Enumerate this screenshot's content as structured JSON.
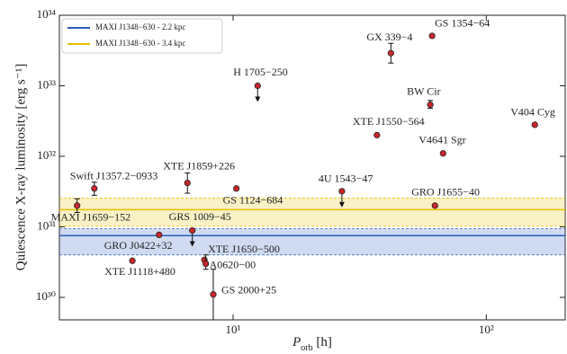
{
  "chart_data": {
    "type": "scatter",
    "xlabel": {
      "symbol": "P",
      "subscript": "orb",
      "unit": " [h]"
    },
    "ylabel": "Quiescence X-ray luminosity [erg s⁻¹]",
    "xscale": "log",
    "yscale": "log",
    "xlim": [
      2.06,
      205
    ],
    "ylim": [
      4.8e+29,
      1e+34
    ],
    "xticks": [
      {
        "value": 10,
        "label": "10¹"
      },
      {
        "value": 100,
        "label": "10²"
      }
    ],
    "yticks": [
      {
        "value": 1e+30,
        "label": "10³⁰"
      },
      {
        "value": 1e+31,
        "label": "10³¹"
      },
      {
        "value": 1e+32,
        "label": "10³²"
      },
      {
        "value": 1e+33,
        "label": "10³³"
      },
      {
        "value": 1e+34,
        "label": "10³⁴"
      }
    ],
    "legend": "upper left",
    "color": "#c8282b",
    "bands": [
      {
        "name": "MAXI J1348−630 - 2.2 kpc",
        "color": "#2a5cbf",
        "value": 7.5e+30,
        "lower": 4e+30,
        "upper": 9.4e+30
      },
      {
        "name": "MAXI J1348−630 - 3.4 kpc",
        "color": "#e8c000",
        "value": 1.75e+31,
        "lower": 1.03e+31,
        "upper": 2.55e+31
      }
    ],
    "points": [
      {
        "name": "MAXI J1659−152",
        "x": 2.42,
        "y": 2e+31,
        "err": [
          1.6e+31,
          2.5e+31
        ]
      },
      {
        "name": "Swift J1357.2−0933",
        "x": 2.83,
        "y": 3.5e+31,
        "err": [
          2.8e+31,
          4.3e+31
        ]
      },
      {
        "name": "GRO J0422+32",
        "x": 5.1,
        "y": 7.7e+30
      },
      {
        "name": "XTE J1118+480",
        "x": 4.0,
        "y": 3.3e+30
      },
      {
        "name": "XTE J1859+226",
        "x": 6.6,
        "y": 4.2e+31,
        "err": [
          3e+31,
          5.8e+31
        ]
      },
      {
        "name": "GRS 1009−45",
        "x": 6.9,
        "y": 8.9e+30,
        "upper_limit": true
      },
      {
        "name": "GS 1124−684",
        "x": 10.3,
        "y": 3.5e+31
      },
      {
        "name": "XTE J1650−500",
        "x": 7.7,
        "y": 3.4e+30
      },
      {
        "name": "A0620−00",
        "x": 7.8,
        "y": 3e+30,
        "err": [
          2.5e+30,
          4e+30
        ]
      },
      {
        "name": "GS 2000+25",
        "x": 8.35,
        "y": 1.1e+30,
        "err": [
          4e+29,
          2.5e+30
        ]
      },
      {
        "name": "H 1705−250",
        "x": 12.5,
        "y": 1e+33,
        "upper_limit": true
      },
      {
        "name": "4U 1543−47",
        "x": 26.9,
        "y": 3.2e+31,
        "upper_limit": true
      },
      {
        "name": "XTE J1550−564",
        "x": 37.0,
        "y": 2e+32
      },
      {
        "name": "GX 339−4",
        "x": 42.0,
        "y": 2.9e+33,
        "err": [
          2.1e+33,
          4e+33
        ]
      },
      {
        "name": "GS 1354−64",
        "x": 61.1,
        "y": 5.1e+33
      },
      {
        "name": "BW Cir",
        "x": 60.1,
        "y": 5.4e+32,
        "err": [
          4.8e+32,
          6.2e+32
        ]
      },
      {
        "name": "V4641 Sgr",
        "x": 67.5,
        "y": 1.1e+32
      },
      {
        "name": "GRO J1655−40",
        "x": 62.7,
        "y": 2e+31
      },
      {
        "name": "V404 Cyg",
        "x": 155.5,
        "y": 2.8e+32
      }
    ]
  }
}
